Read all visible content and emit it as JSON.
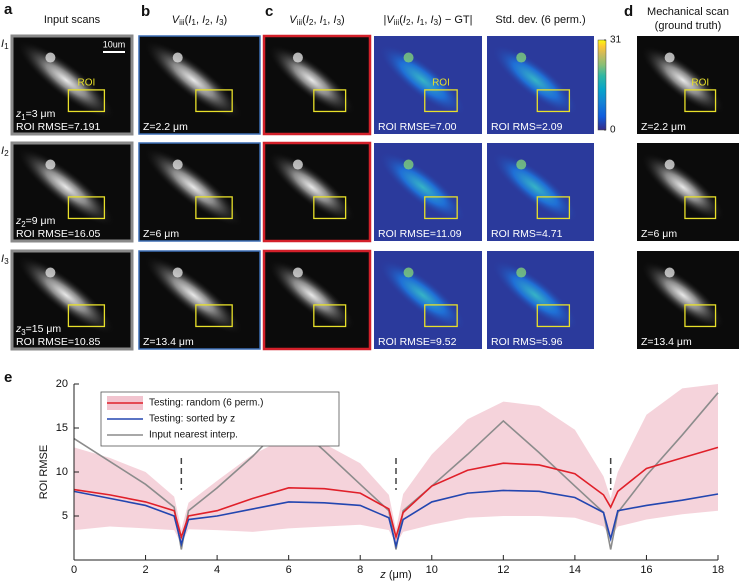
{
  "letters": [
    "a",
    "b",
    "c",
    "d",
    "e"
  ],
  "columns": [
    {
      "title": [
        [
          {
            "text": "Input scans"
          }
        ]
      ],
      "cells": [
        {
          "roi": "ROI",
          "lines": [
            [
              {
                "text": "z",
                "italic": true
              },
              {
                "text": "1",
                "sub": true
              },
              {
                "text": "=3 μm"
              }
            ],
            [
              {
                "text": "ROI RMSE=7.191"
              }
            ]
          ]
        },
        {
          "lines": [
            [
              {
                "text": "z",
                "italic": true
              },
              {
                "text": "2",
                "sub": true
              },
              {
                "text": "=9 μm"
              }
            ],
            [
              {
                "text": "ROI RMSE=16.05"
              }
            ]
          ]
        },
        {
          "lines": [
            [
              {
                "text": "z",
                "italic": true
              },
              {
                "text": "3",
                "sub": true
              },
              {
                "text": "=15 μm"
              }
            ],
            [
              {
                "text": "ROI RMSE=10.85"
              }
            ]
          ]
        }
      ]
    },
    {
      "title": [
        [
          {
            "text": "V",
            "italic": true
          },
          {
            "text": "iii",
            "sub": true
          },
          {
            "text": "("
          },
          {
            "text": "I",
            "italic": true
          },
          {
            "text": "1",
            "sub": true
          },
          {
            "text": ", "
          },
          {
            "text": "I",
            "italic": true
          },
          {
            "text": "2",
            "sub": true
          },
          {
            "text": ", "
          },
          {
            "text": "I",
            "italic": true
          },
          {
            "text": "3",
            "sub": true
          },
          {
            "text": ")"
          }
        ]
      ],
      "cells": [
        {
          "lines": [
            [
              {
                "text": "Z=2.2 μm"
              }
            ]
          ]
        },
        {
          "lines": [
            [
              {
                "text": "Z=6 μm"
              }
            ]
          ]
        },
        {
          "lines": [
            [
              {
                "text": "Z=13.4 μm"
              }
            ]
          ]
        }
      ]
    },
    {
      "title": [
        [
          {
            "text": "V",
            "italic": true
          },
          {
            "text": "iii",
            "sub": true
          },
          {
            "text": "("
          },
          {
            "text": "I",
            "italic": true
          },
          {
            "text": "2",
            "sub": true
          },
          {
            "text": ", "
          },
          {
            "text": "I",
            "italic": true
          },
          {
            "text": "1",
            "sub": true
          },
          {
            "text": ", "
          },
          {
            "text": "I",
            "italic": true
          },
          {
            "text": "3",
            "sub": true
          },
          {
            "text": ")"
          }
        ]
      ],
      "cells": [
        {
          "lines": []
        },
        {
          "lines": []
        },
        {
          "lines": []
        }
      ]
    },
    {
      "title": [
        [
          {
            "text": "|"
          },
          {
            "text": "V",
            "italic": true
          },
          {
            "text": "iii",
            "sub": true
          },
          {
            "text": "("
          },
          {
            "text": "I",
            "italic": true
          },
          {
            "text": "2",
            "sub": true
          },
          {
            "text": ", "
          },
          {
            "text": "I",
            "italic": true
          },
          {
            "text": "1",
            "sub": true
          },
          {
            "text": ", "
          },
          {
            "text": "I",
            "italic": true
          },
          {
            "text": "3",
            "sub": true
          },
          {
            "text": ") − GT|"
          }
        ]
      ],
      "cells": [
        {
          "roi": "ROI",
          "lines": [
            [
              {
                "text": "ROI RMSE=7.00"
              }
            ]
          ]
        },
        {
          "lines": [
            [
              {
                "text": "ROI RMSE=11.09"
              }
            ]
          ]
        },
        {
          "lines": [
            [
              {
                "text": "ROI RMSE=9.52"
              }
            ]
          ]
        }
      ]
    },
    {
      "title": [
        [
          {
            "text": "Std. dev. (6 perm.)"
          }
        ]
      ],
      "cells": [
        {
          "lines": [
            [
              {
                "text": "ROI RMS=2.09"
              }
            ]
          ]
        },
        {
          "lines": [
            [
              {
                "text": "ROI RMS=4.71"
              }
            ]
          ]
        },
        {
          "lines": [
            [
              {
                "text": "ROI RMS=5.96"
              }
            ]
          ]
        }
      ]
    },
    {
      "title": [
        [
          {
            "text": "Mechanical scan"
          }
        ],
        [
          {
            "text": "(ground truth)"
          }
        ]
      ],
      "cells": [
        {
          "roi": "ROI",
          "lines": [
            [
              {
                "text": "Z=2.2 μm"
              }
            ]
          ]
        },
        {
          "lines": [
            [
              {
                "text": "Z=6 μm"
              }
            ]
          ]
        },
        {
          "lines": [
            [
              {
                "text": "Z=13.4 μm"
              }
            ]
          ]
        }
      ]
    }
  ],
  "row_labels": [
    [
      {
        "text": "I",
        "italic": true
      },
      {
        "text": "1",
        "sub": true
      }
    ],
    [
      {
        "text": "I",
        "italic": true
      },
      {
        "text": "2",
        "sub": true
      }
    ],
    [
      {
        "text": "I",
        "italic": true
      },
      {
        "text": "3",
        "sub": true
      }
    ]
  ],
  "scale_bar": "10um",
  "colorbar": {
    "lim": [
      0,
      31
    ],
    "ticks": [
      0,
      31
    ]
  },
  "chart_data": {
    "type": "line",
    "xlabel": [
      {
        "text": "z",
        "italic": true
      },
      {
        "text": " (μm)"
      }
    ],
    "ylabel": "ROI RMSE",
    "xlim": [
      0,
      18
    ],
    "ylim": [
      0,
      20
    ],
    "xticks": [
      0,
      2,
      4,
      6,
      8,
      10,
      12,
      14,
      16,
      18
    ],
    "yticks": [
      5,
      10,
      15,
      20
    ],
    "vlines": [
      3,
      9,
      15
    ],
    "legend": "upper left",
    "x": [
      0,
      1,
      2,
      2.8,
      3,
      3.2,
      4,
      5,
      6,
      7,
      8,
      8.8,
      9,
      9.2,
      10,
      11,
      12,
      13,
      14,
      14.8,
      15,
      15.2,
      16,
      17,
      18
    ],
    "series": [
      {
        "name": "Testing: random (6 perm.)",
        "color": "#e0202a",
        "band_color": "#f2c4cf",
        "values": [
          8,
          7.4,
          6.6,
          5.6,
          2.6,
          5,
          5.6,
          7,
          8.2,
          8.1,
          7.6,
          5.8,
          2.6,
          5.4,
          8.4,
          10.2,
          11,
          10.8,
          9.8,
          7.4,
          6,
          7.8,
          10.4,
          11.6,
          12.8
        ],
        "upper": [
          12.8,
          11.6,
          10,
          7.2,
          3.5,
          6.5,
          9,
          12,
          14,
          13.2,
          11,
          7.4,
          3.5,
          7.5,
          12,
          16,
          18,
          17.5,
          14.8,
          9.5,
          7,
          10,
          16.5,
          19.5,
          20
        ],
        "lower": [
          3.4,
          3.8,
          3.6,
          3.4,
          1.8,
          3.5,
          3.4,
          3.2,
          3.6,
          3.8,
          4,
          3.4,
          1.8,
          3.2,
          4,
          4.8,
          5,
          5,
          4.8,
          3.8,
          2.5,
          3.8,
          4.6,
          5.2,
          5.6
        ]
      },
      {
        "name": "Testing: sorted by z",
        "color": "#2346b0",
        "values": [
          7.8,
          7,
          6.2,
          5,
          1.8,
          4.6,
          5,
          5.8,
          6.6,
          6.5,
          6.2,
          4.8,
          1.6,
          4.6,
          6.6,
          7.6,
          7.9,
          7.8,
          7.1,
          5.4,
          2.4,
          5.6,
          6.2,
          6.8,
          7.5
        ]
      },
      {
        "name": "Input nearest interp.",
        "color": "#8c8c8c",
        "values": [
          13.8,
          11.2,
          8.6,
          6,
          1.2,
          5.6,
          8.2,
          11.8,
          16,
          12.4,
          8.6,
          5.6,
          1.2,
          5.6,
          8.4,
          12,
          15.8,
          12.2,
          8.4,
          5.4,
          1.2,
          5.4,
          9.6,
          14.2,
          19
        ]
      }
    ]
  }
}
